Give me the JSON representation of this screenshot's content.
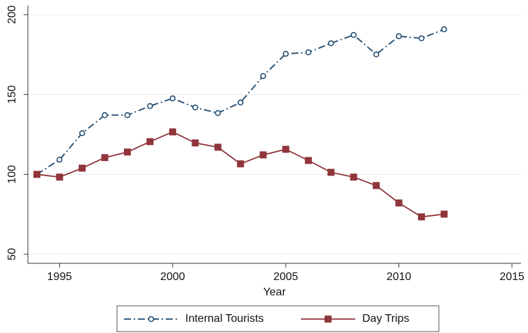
{
  "chart_data": {
    "type": "line",
    "x_label": "Year",
    "x": [
      1994,
      1995,
      1996,
      1997,
      1998,
      1999,
      2000,
      2001,
      2002,
      2003,
      2004,
      2005,
      2006,
      2007,
      2008,
      2009,
      2010,
      2011,
      2012
    ],
    "series": [
      {
        "name": "Internal Tourists",
        "color": "#1a476f",
        "marker": "circle",
        "dash": "dashdot",
        "values": [
          100,
          109.2,
          125.8,
          137.1,
          137.1,
          142.8,
          147.6,
          141.9,
          138.4,
          145,
          161.6,
          175.5,
          176.4,
          182.1,
          187.3,
          175.1,
          186.5,
          185.2,
          190.8
        ]
      },
      {
        "name": "Day Trips",
        "color": "#90353b",
        "marker": "square",
        "dash": "solid",
        "values": [
          100,
          98.3,
          103.9,
          110.5,
          114,
          120.5,
          126.6,
          119.7,
          117,
          106.6,
          112.2,
          115.7,
          108.7,
          101.3,
          98.3,
          93,
          82.1,
          73.4,
          75.1
        ]
      }
    ],
    "xlim": [
      1993.6,
      2015.4
    ],
    "xticks": [
      1995,
      2000,
      2005,
      2010,
      2015
    ],
    "ylim": [
      44.3,
      205.7
    ],
    "yticks": [
      50,
      100,
      150,
      200
    ],
    "grid": true,
    "legend": "bottom"
  }
}
